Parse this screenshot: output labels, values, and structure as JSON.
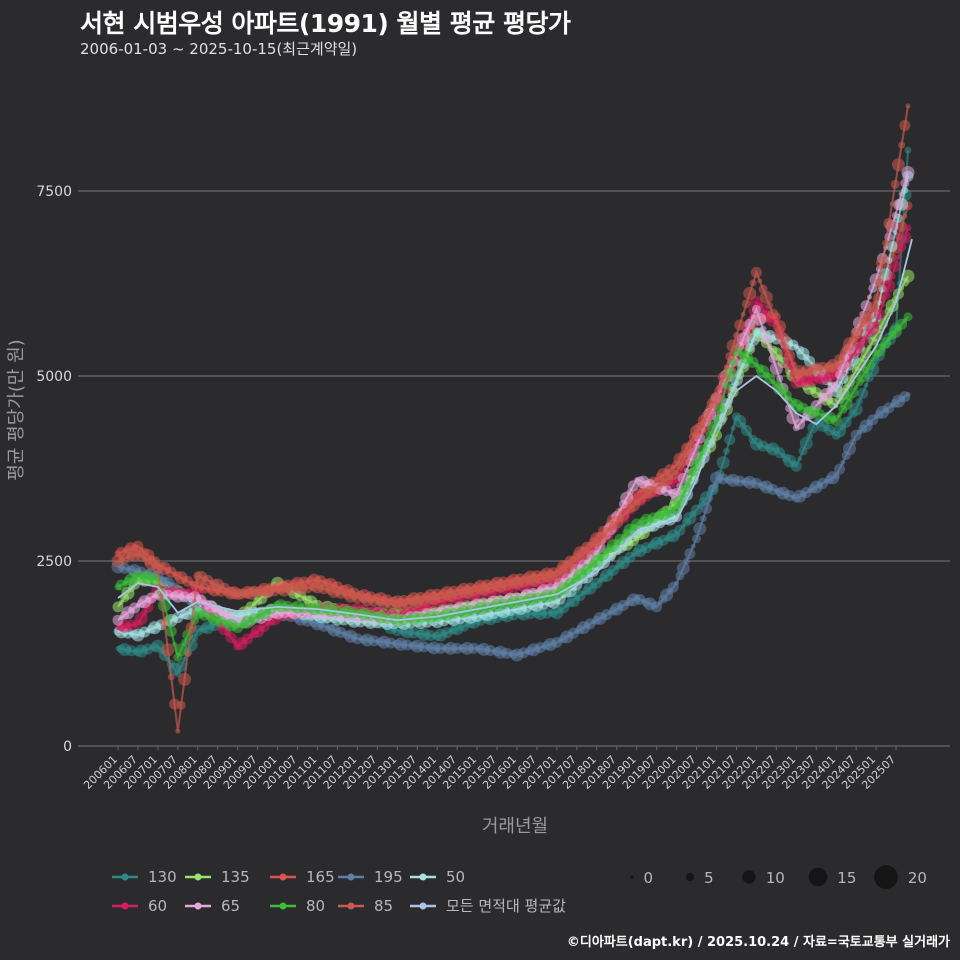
{
  "header": {
    "title": "서현 시범우성 아파트(1991) 월별 평균 평당가",
    "subtitle": "2006-01-03 ~ 2025-10-15(최근계약일)"
  },
  "footer": {
    "credit": "©디아파트(dapt.kr) / 2025.10.24 / 자료=국토교통부 실거래가"
  },
  "chart_data": {
    "type": "scatter",
    "xlabel": "거래년월",
    "ylabel": "평균 평당가(만 원)",
    "ylim": [
      0,
      9000
    ],
    "yticks": [
      0,
      2500,
      5000,
      7500
    ],
    "xlim": [
      2006.0,
      2025.9
    ],
    "xticks": [
      "200601",
      "200607",
      "200701",
      "200707",
      "200801",
      "200807",
      "200901",
      "200907",
      "201001",
      "201007",
      "201101",
      "201107",
      "201201",
      "201207",
      "201301",
      "201307",
      "201401",
      "201407",
      "201501",
      "201507",
      "201601",
      "201607",
      "201701",
      "201707",
      "201801",
      "201807",
      "201901",
      "201907",
      "202001",
      "202007",
      "202101",
      "202107",
      "202201",
      "202207",
      "202301",
      "202307",
      "202401",
      "202407",
      "202501",
      "202507"
    ],
    "size_legend": [
      0,
      5,
      10,
      15,
      20
    ],
    "series": [
      {
        "name": "130",
        "color": "#2f8a87",
        "points": [
          [
            2006.0,
            1320
          ],
          [
            2006.5,
            1270
          ],
          [
            2007.0,
            1350
          ],
          [
            2007.5,
            980
          ],
          [
            2008.0,
            1560
          ],
          [
            2009.0,
            1720
          ],
          [
            2010.0,
            1850
          ],
          [
            2011.0,
            1720
          ],
          [
            2012.0,
            1800
          ],
          [
            2013.0,
            1560
          ],
          [
            2014.0,
            1480
          ],
          [
            2015.0,
            1690
          ],
          [
            2016.0,
            1780
          ],
          [
            2017.0,
            1800
          ],
          [
            2018.0,
            2200
          ],
          [
            2019.0,
            2620
          ],
          [
            2020.0,
            2860
          ],
          [
            2021.0,
            3520
          ],
          [
            2021.5,
            4450
          ],
          [
            2022.0,
            4080
          ],
          [
            2022.5,
            4000
          ],
          [
            2023.0,
            3780
          ],
          [
            2023.5,
            4400
          ],
          [
            2024.0,
            4200
          ],
          [
            2024.5,
            4550
          ],
          [
            2025.0,
            5200
          ],
          [
            2025.5,
            5650
          ],
          [
            2025.8,
            8050
          ]
        ]
      },
      {
        "name": "135",
        "color": "#9be36b",
        "points": [
          [
            2006.0,
            1880
          ],
          [
            2006.5,
            2250
          ],
          [
            2007.0,
            2220
          ],
          [
            2008.0,
            1950
          ],
          [
            2009.0,
            1720
          ],
          [
            2010.0,
            2200
          ],
          [
            2011.0,
            1900
          ],
          [
            2012.0,
            1800
          ],
          [
            2013.0,
            1780
          ],
          [
            2014.0,
            1820
          ],
          [
            2015.0,
            1920
          ],
          [
            2016.0,
            2000
          ],
          [
            2017.0,
            2100
          ],
          [
            2018.0,
            2500
          ],
          [
            2019.0,
            2800
          ],
          [
            2020.0,
            3300
          ],
          [
            2021.0,
            4200
          ],
          [
            2022.0,
            5600
          ],
          [
            2022.5,
            5300
          ],
          [
            2023.0,
            4950
          ],
          [
            2024.0,
            4600
          ],
          [
            2025.0,
            5550
          ],
          [
            2025.8,
            6350
          ]
        ]
      },
      {
        "name": "165",
        "color": "#d9554f",
        "points": [
          [
            2006.0,
            2600
          ],
          [
            2006.5,
            2700
          ],
          [
            2007.0,
            2450
          ],
          [
            2008.0,
            2150
          ],
          [
            2009.0,
            2050
          ],
          [
            2010.0,
            2150
          ],
          [
            2011.0,
            2250
          ],
          [
            2012.0,
            2050
          ],
          [
            2013.0,
            1950
          ],
          [
            2014.0,
            2050
          ],
          [
            2015.0,
            2150
          ],
          [
            2016.0,
            2250
          ],
          [
            2017.0,
            2350
          ],
          [
            2018.0,
            2800
          ],
          [
            2019.0,
            3400
          ],
          [
            2020.0,
            3800
          ],
          [
            2021.0,
            4700
          ],
          [
            2022.0,
            5800
          ],
          [
            2022.5,
            5800
          ],
          [
            2023.0,
            5000
          ],
          [
            2024.0,
            5100
          ],
          [
            2025.0,
            5900
          ],
          [
            2025.8,
            7300
          ]
        ]
      },
      {
        "name": "195",
        "color": "#5f7fa6",
        "points": [
          [
            2006.0,
            2420
          ],
          [
            2007.0,
            2300
          ],
          [
            2008.0,
            1900
          ],
          [
            2009.0,
            1700
          ],
          [
            2010.0,
            1800
          ],
          [
            2011.0,
            1650
          ],
          [
            2012.0,
            1450
          ],
          [
            2013.0,
            1380
          ],
          [
            2014.0,
            1320
          ],
          [
            2015.0,
            1320
          ],
          [
            2016.0,
            1230
          ],
          [
            2017.0,
            1400
          ],
          [
            2018.0,
            1700
          ],
          [
            2019.0,
            2000
          ],
          [
            2019.5,
            1880
          ],
          [
            2020.0,
            2200
          ],
          [
            2020.5,
            2800
          ],
          [
            2021.0,
            3620
          ],
          [
            2022.0,
            3550
          ],
          [
            2023.0,
            3350
          ],
          [
            2024.0,
            3650
          ],
          [
            2024.5,
            4200
          ],
          [
            2025.0,
            4450
          ],
          [
            2025.8,
            4750
          ]
        ]
      },
      {
        "name": "50",
        "color": "#a6e2e3",
        "points": [
          [
            2006.0,
            1550
          ],
          [
            2006.5,
            1500
          ],
          [
            2007.0,
            1620
          ],
          [
            2008.0,
            1850
          ],
          [
            2009.0,
            1750
          ],
          [
            2010.0,
            1850
          ],
          [
            2011.0,
            1750
          ],
          [
            2012.0,
            1680
          ],
          [
            2013.0,
            1650
          ],
          [
            2014.0,
            1680
          ],
          [
            2015.0,
            1750
          ],
          [
            2016.0,
            1850
          ],
          [
            2017.0,
            1950
          ],
          [
            2018.0,
            2400
          ],
          [
            2019.0,
            2900
          ],
          [
            2020.0,
            3100
          ],
          [
            2021.0,
            4300
          ],
          [
            2022.0,
            5600
          ],
          [
            2022.5,
            5500
          ],
          [
            2023.0,
            5400
          ],
          [
            2024.0,
            4800
          ],
          [
            2025.0,
            5800
          ],
          [
            2025.8,
            7700
          ]
        ]
      },
      {
        "name": "60",
        "color": "#d61e5c",
        "points": [
          [
            2006.0,
            1600
          ],
          [
            2006.5,
            1650
          ],
          [
            2007.0,
            2100
          ],
          [
            2008.0,
            2050
          ],
          [
            2009.0,
            1350
          ],
          [
            2010.0,
            1750
          ],
          [
            2011.0,
            1850
          ],
          [
            2012.0,
            1850
          ],
          [
            2013.0,
            1750
          ],
          [
            2014.0,
            1950
          ],
          [
            2015.0,
            2050
          ],
          [
            2016.0,
            2150
          ],
          [
            2017.0,
            2250
          ],
          [
            2018.0,
            2700
          ],
          [
            2019.0,
            3300
          ],
          [
            2020.0,
            3600
          ],
          [
            2021.0,
            4600
          ],
          [
            2022.0,
            6000
          ],
          [
            2022.5,
            5700
          ],
          [
            2023.0,
            4900
          ],
          [
            2024.0,
            5000
          ],
          [
            2025.0,
            5700
          ],
          [
            2025.8,
            7000
          ]
        ]
      },
      {
        "name": "65",
        "color": "#e6a9dc",
        "points": [
          [
            2006.0,
            1700
          ],
          [
            2006.5,
            1900
          ],
          [
            2007.0,
            2050
          ],
          [
            2008.0,
            2000
          ],
          [
            2009.0,
            1650
          ],
          [
            2010.0,
            1800
          ],
          [
            2011.0,
            1800
          ],
          [
            2012.0,
            1750
          ],
          [
            2013.0,
            1700
          ],
          [
            2014.0,
            1800
          ],
          [
            2015.0,
            1900
          ],
          [
            2016.0,
            2000
          ],
          [
            2017.0,
            2150
          ],
          [
            2018.0,
            2600
          ],
          [
            2019.0,
            3600
          ],
          [
            2020.0,
            3400
          ],
          [
            2021.0,
            4700
          ],
          [
            2022.0,
            5900
          ],
          [
            2023.0,
            4300
          ],
          [
            2024.0,
            4900
          ],
          [
            2025.0,
            6300
          ],
          [
            2025.8,
            7750
          ]
        ]
      },
      {
        "name": "80",
        "color": "#3dbb3a",
        "points": [
          [
            2006.0,
            2150
          ],
          [
            2006.5,
            2300
          ],
          [
            2007.0,
            2250
          ],
          [
            2007.5,
            1200
          ],
          [
            2008.0,
            1800
          ],
          [
            2009.0,
            1600
          ],
          [
            2010.0,
            1900
          ],
          [
            2011.0,
            1850
          ],
          [
            2012.0,
            1800
          ],
          [
            2013.0,
            1700
          ],
          [
            2014.0,
            1750
          ],
          [
            2015.0,
            1850
          ],
          [
            2016.0,
            1950
          ],
          [
            2017.0,
            2050
          ],
          [
            2018.0,
            2500
          ],
          [
            2019.0,
            3000
          ],
          [
            2020.0,
            3200
          ],
          [
            2021.0,
            4400
          ],
          [
            2021.5,
            5350
          ],
          [
            2022.0,
            5150
          ],
          [
            2023.0,
            4600
          ],
          [
            2024.0,
            4400
          ],
          [
            2025.0,
            5300
          ],
          [
            2025.8,
            5800
          ]
        ]
      },
      {
        "name": "85",
        "color": "#c95a4e",
        "points": [
          [
            2006.0,
            2500
          ],
          [
            2006.5,
            2600
          ],
          [
            2007.0,
            2400
          ],
          [
            2007.5,
            200
          ],
          [
            2008.0,
            2300
          ],
          [
            2009.0,
            2050
          ],
          [
            2010.0,
            2100
          ],
          [
            2011.0,
            2150
          ],
          [
            2012.0,
            2000
          ],
          [
            2013.0,
            1900
          ],
          [
            2014.0,
            2000
          ],
          [
            2015.0,
            2100
          ],
          [
            2016.0,
            2200
          ],
          [
            2017.0,
            2300
          ],
          [
            2018.0,
            2750
          ],
          [
            2019.0,
            3300
          ],
          [
            2020.0,
            3700
          ],
          [
            2021.0,
            4700
          ],
          [
            2022.0,
            6400
          ],
          [
            2023.0,
            5050
          ],
          [
            2024.0,
            5150
          ],
          [
            2025.0,
            6000
          ],
          [
            2025.8,
            8650
          ]
        ]
      }
    ],
    "average": {
      "name": "모든 면적대 평균값",
      "color": "#a9c4e6",
      "points": [
        [
          2006.0,
          2000
        ],
        [
          2006.5,
          2200
        ],
        [
          2007.0,
          2150
        ],
        [
          2007.5,
          1800
        ],
        [
          2008.0,
          1950
        ],
        [
          2009.0,
          1820
        ],
        [
          2010.0,
          1880
        ],
        [
          2011.0,
          1850
        ],
        [
          2012.0,
          1780
        ],
        [
          2013.0,
          1700
        ],
        [
          2014.0,
          1750
        ],
        [
          2015.0,
          1850
        ],
        [
          2016.0,
          1950
        ],
        [
          2017.0,
          2050
        ],
        [
          2018.0,
          2350
        ],
        [
          2019.0,
          2900
        ],
        [
          2020.0,
          3050
        ],
        [
          2020.5,
          3600
        ],
        [
          2021.0,
          4300
        ],
        [
          2021.5,
          4800
        ],
        [
          2022.0,
          5000
        ],
        [
          2022.5,
          4800
        ],
        [
          2023.0,
          4500
        ],
        [
          2023.5,
          4350
        ],
        [
          2024.0,
          4600
        ],
        [
          2024.5,
          5000
        ],
        [
          2025.0,
          5400
        ],
        [
          2025.5,
          6000
        ],
        [
          2025.9,
          6850
        ]
      ]
    }
  }
}
